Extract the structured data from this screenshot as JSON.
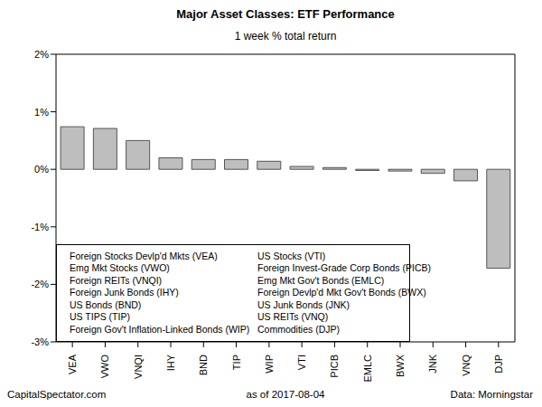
{
  "chart_data": {
    "type": "bar",
    "title": "Major Asset Classes: ETF Performance",
    "subtitle": "1 week % total return",
    "categories": [
      "VEA",
      "VWO",
      "VNQI",
      "IHY",
      "BND",
      "TIP",
      "WIP",
      "VTI",
      "PICB",
      "EMLC",
      "BWX",
      "JNK",
      "VNQ",
      "DJP"
    ],
    "values": [
      0.74,
      0.71,
      0.5,
      0.2,
      0.17,
      0.17,
      0.14,
      0.05,
      0.03,
      -0.02,
      -0.03,
      -0.07,
      -0.2,
      -1.72
    ],
    "descriptions": [
      "Foreign Stocks Devlp'd Mkts (VEA)",
      "Emg Mkt Stocks (VWO)",
      "Foreign REITs (VNQI)",
      "Foreign Junk Bonds (IHY)",
      "US Bonds (BND)",
      "US TIPS (TIP)",
      "Foreign Gov't Inflation-Linked Bonds (WIP)",
      "US Stocks (VTI)",
      "Foreign Invest-Grade Corp Bonds (PICB)",
      "Emg Mkt Gov't Bonds (EMLC)",
      "Foreign Devlp'd Mkt Gov't Bonds (BWX)",
      "US Junk Bonds (JNK)",
      "US REITs (VNQ)",
      "Commodities (DJP)"
    ],
    "color": "#bebebe",
    "ylim": [
      -3,
      2
    ],
    "yticks": [
      {
        "value": -3,
        "label": "-3%"
      },
      {
        "value": -2,
        "label": "-2%"
      },
      {
        "value": -1,
        "label": "-1%"
      },
      {
        "value": 0,
        "label": "0%"
      },
      {
        "value": 1,
        "label": "1%"
      },
      {
        "value": 2,
        "label": "2%"
      }
    ],
    "grid": false,
    "legend": "lower left",
    "source": "CapitalSpectator.com",
    "note": "as of 2017-08-04",
    "data_source": "Data: Morningstar"
  }
}
